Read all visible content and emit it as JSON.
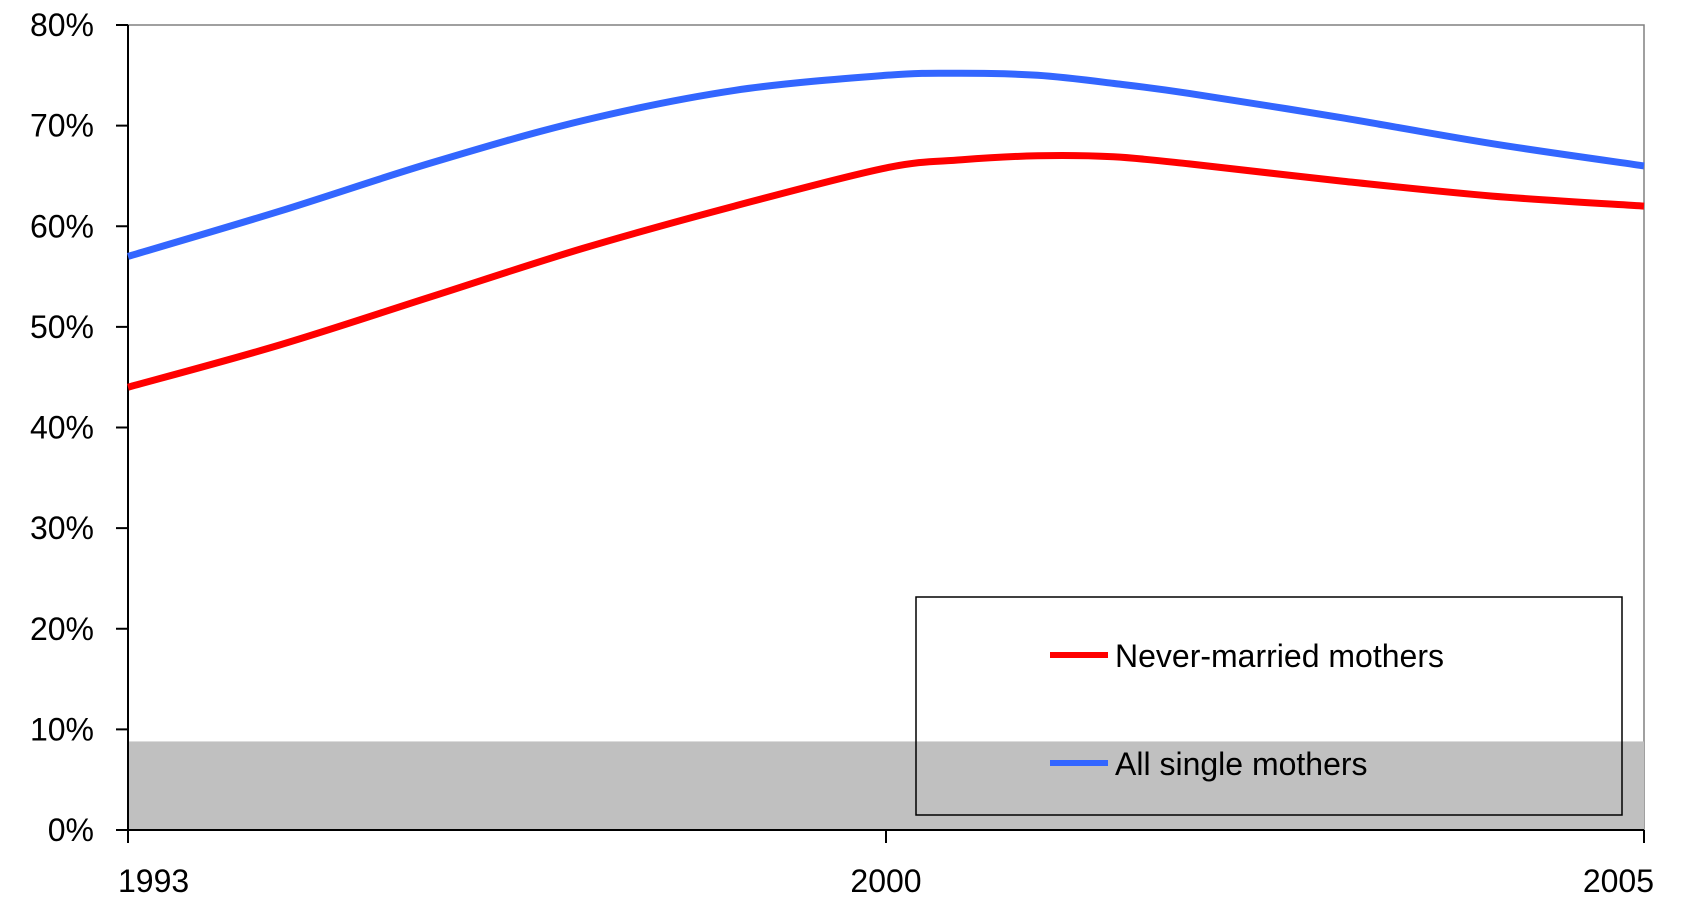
{
  "chart_data": {
    "type": "line",
    "title": "",
    "xlabel": "",
    "ylabel": "",
    "x_ticks": [
      "1993",
      "2000",
      "2005"
    ],
    "y_ticks": [
      "0%",
      "10%",
      "20%",
      "30%",
      "40%",
      "50%",
      "60%",
      "70%",
      "80%"
    ],
    "ylim": [
      0,
      80
    ],
    "y_unit": "%",
    "x_positions": [
      0,
      0.5,
      1
    ],
    "series": [
      {
        "name": "Never-married mothers",
        "color": "#ff0000",
        "x": [
          0,
          0.1,
          0.2,
          0.3,
          0.4,
          0.5,
          0.55,
          0.6,
          0.65,
          0.7,
          0.8,
          0.9,
          1.0
        ],
        "values": [
          44,
          48.2,
          53,
          57.8,
          62,
          65.8,
          66.6,
          67,
          66.9,
          66.2,
          64.5,
          63,
          62
        ]
      },
      {
        "name": "All single mothers",
        "color": "#3366ff",
        "x": [
          0,
          0.1,
          0.2,
          0.3,
          0.4,
          0.5,
          0.55,
          0.6,
          0.65,
          0.7,
          0.8,
          0.9,
          1.0
        ],
        "values": [
          57,
          61.5,
          66.3,
          70.5,
          73.5,
          75,
          75.2,
          75,
          74.2,
          73.2,
          70.8,
          68.2,
          66
        ]
      }
    ],
    "shaded_band": {
      "from": 0,
      "to": 8.8,
      "color": "#c0c0c0"
    },
    "legend": {
      "placement": "bottom-right"
    },
    "grid": false
  }
}
